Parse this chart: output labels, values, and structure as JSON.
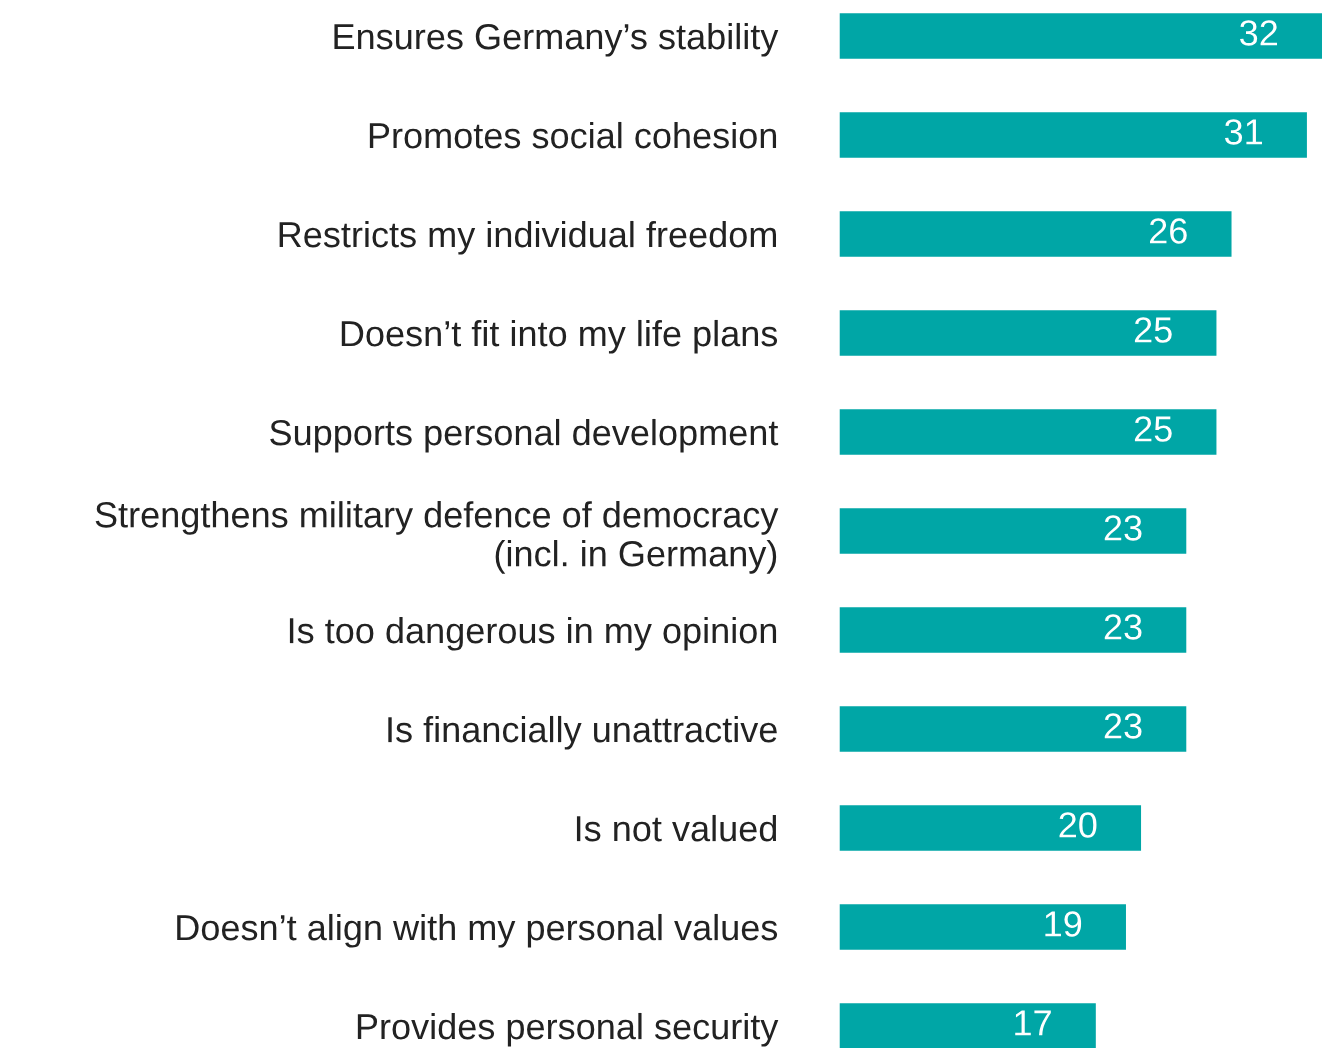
{
  "chart_data": {
    "type": "bar",
    "orientation": "horizontal",
    "categories": [
      "Ensures Germany’s stability",
      "Promotes social cohesion",
      "Restricts my individual freedom",
      "Doesn’t fit into my life plans",
      "Supports personal development",
      "Strengthens military defence of democracy\n(incl. in Germany)",
      "Is too dangerous in my opinion",
      "Is financially unattractive",
      "Is not valued",
      "Doesn’t align with my personal values",
      "Provides personal security"
    ],
    "values": [
      32,
      31,
      26,
      25,
      25,
      23,
      23,
      23,
      20,
      19,
      17
    ],
    "color": "#00a6a6",
    "data_labels": true,
    "grid": false,
    "legend": false
  }
}
